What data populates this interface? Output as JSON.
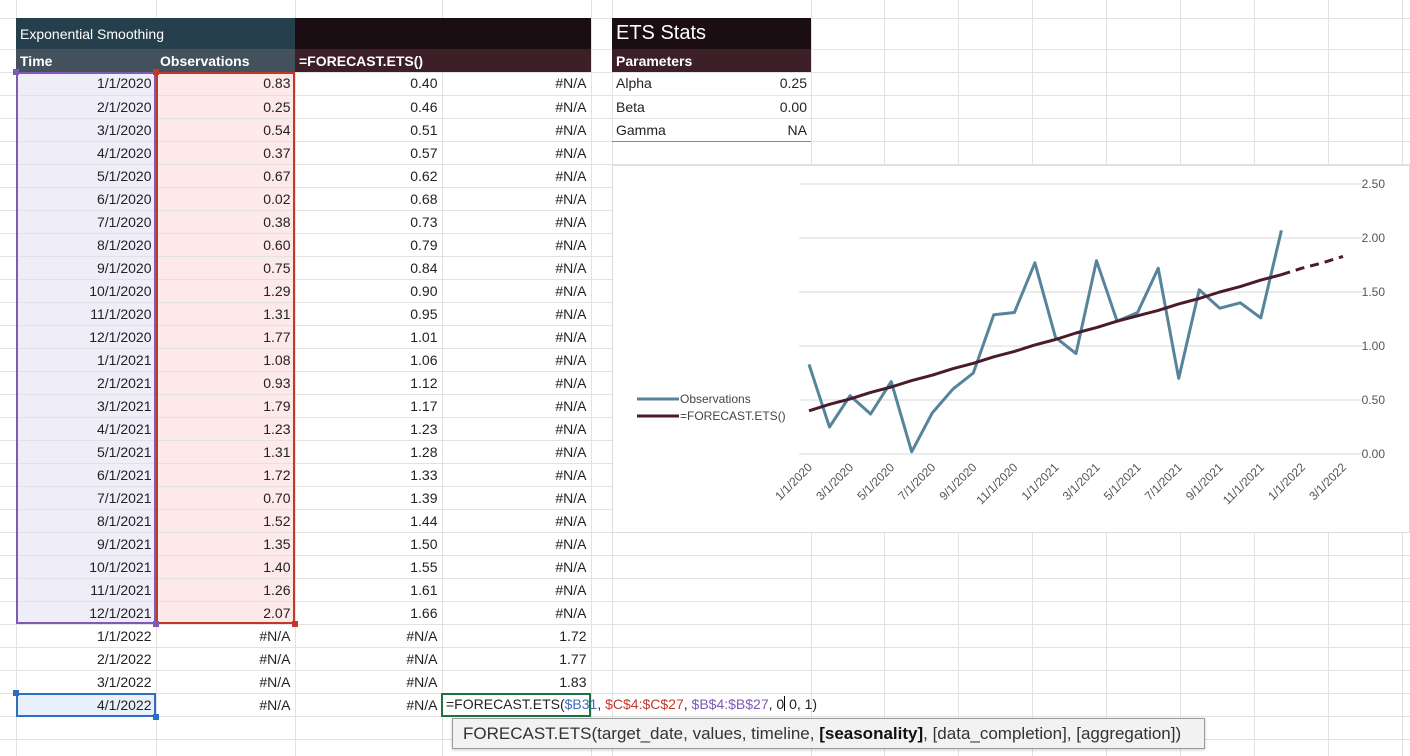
{
  "sheet": {
    "title": "Exponential Smoothing",
    "headers": {
      "time": "Time",
      "observations": "Observations",
      "forecast": "=FORECAST.ETS()"
    },
    "rows": [
      [
        "1/1/2020",
        "0.83",
        "0.40",
        "#N/A"
      ],
      [
        "2/1/2020",
        "0.25",
        "0.46",
        "#N/A"
      ],
      [
        "3/1/2020",
        "0.54",
        "0.51",
        "#N/A"
      ],
      [
        "4/1/2020",
        "0.37",
        "0.57",
        "#N/A"
      ],
      [
        "5/1/2020",
        "0.67",
        "0.62",
        "#N/A"
      ],
      [
        "6/1/2020",
        "0.02",
        "0.68",
        "#N/A"
      ],
      [
        "7/1/2020",
        "0.38",
        "0.73",
        "#N/A"
      ],
      [
        "8/1/2020",
        "0.60",
        "0.79",
        "#N/A"
      ],
      [
        "9/1/2020",
        "0.75",
        "0.84",
        "#N/A"
      ],
      [
        "10/1/2020",
        "1.29",
        "0.90",
        "#N/A"
      ],
      [
        "11/1/2020",
        "1.31",
        "0.95",
        "#N/A"
      ],
      [
        "12/1/2020",
        "1.77",
        "1.01",
        "#N/A"
      ],
      [
        "1/1/2021",
        "1.08",
        "1.06",
        "#N/A"
      ],
      [
        "2/1/2021",
        "0.93",
        "1.12",
        "#N/A"
      ],
      [
        "3/1/2021",
        "1.79",
        "1.17",
        "#N/A"
      ],
      [
        "4/1/2021",
        "1.23",
        "1.23",
        "#N/A"
      ],
      [
        "5/1/2021",
        "1.31",
        "1.28",
        "#N/A"
      ],
      [
        "6/1/2021",
        "1.72",
        "1.33",
        "#N/A"
      ],
      [
        "7/1/2021",
        "0.70",
        "1.39",
        "#N/A"
      ],
      [
        "8/1/2021",
        "1.52",
        "1.44",
        "#N/A"
      ],
      [
        "9/1/2021",
        "1.35",
        "1.50",
        "#N/A"
      ],
      [
        "10/1/2021",
        "1.40",
        "1.55",
        "#N/A"
      ],
      [
        "11/1/2021",
        "1.26",
        "1.61",
        "#N/A"
      ],
      [
        "12/1/2021",
        "2.07",
        "1.66",
        "#N/A"
      ],
      [
        "1/1/2022",
        "#N/A",
        "#N/A",
        "1.72"
      ],
      [
        "2/1/2022",
        "#N/A",
        "#N/A",
        "1.77"
      ],
      [
        "3/1/2022",
        "#N/A",
        "#N/A",
        "1.83"
      ]
    ],
    "active_row": {
      "time": "4/1/2022",
      "observations": "#N/A",
      "forecast": "#N/A"
    }
  },
  "stats": {
    "title": "ETS Stats",
    "header": "Parameters",
    "params": [
      {
        "name": "Alpha",
        "value": "0.25"
      },
      {
        "name": "Beta",
        "value": "0.00"
      },
      {
        "name": "Gamma",
        "value": "NA"
      }
    ]
  },
  "formula": {
    "prefix": "=FORECAST.ETS(",
    "arg1": "$B31",
    "sep1": ", ",
    "arg2": "$C$4:$C$27",
    "sep2": ", ",
    "arg3": "$B$4:$B$27",
    "sep3": ", 0",
    "rest": " 0, 1)"
  },
  "tooltip": {
    "prefix": "FORECAST.ETS(target_date, values, timeline, ",
    "bold": "[seasonality]",
    "suffix": ", [data_completion], [aggregation])"
  },
  "chart_data": {
    "type": "line",
    "x": [
      "1/1/2020",
      "2/1/2020",
      "3/1/2020",
      "4/1/2020",
      "5/1/2020",
      "6/1/2020",
      "7/1/2020",
      "8/1/2020",
      "9/1/2020",
      "10/1/2020",
      "11/1/2020",
      "12/1/2020",
      "1/1/2021",
      "2/1/2021",
      "3/1/2021",
      "4/1/2021",
      "5/1/2021",
      "6/1/2021",
      "7/1/2021",
      "8/1/2021",
      "9/1/2021",
      "10/1/2021",
      "11/1/2021",
      "12/1/2021",
      "1/1/2022",
      "2/1/2022",
      "3/1/2022"
    ],
    "x_tick_labels": [
      "1/1/2020",
      "3/1/2020",
      "5/1/2020",
      "7/1/2020",
      "9/1/2020",
      "11/1/2020",
      "1/1/2021",
      "3/1/2021",
      "5/1/2021",
      "7/1/2021",
      "9/1/2021",
      "11/1/2021",
      "1/1/2022",
      "3/1/2022"
    ],
    "y_tick_labels": [
      "0.00",
      "0.50",
      "1.00",
      "1.50",
      "2.00",
      "2.50"
    ],
    "ylim": [
      0,
      2.5
    ],
    "grid": true,
    "legend_position": "left",
    "series": [
      {
        "name": "Observations",
        "color": "#56849a",
        "style": "solid",
        "values": [
          0.83,
          0.25,
          0.54,
          0.37,
          0.67,
          0.02,
          0.38,
          0.6,
          0.75,
          1.29,
          1.31,
          1.77,
          1.08,
          0.93,
          1.79,
          1.23,
          1.31,
          1.72,
          0.7,
          1.52,
          1.35,
          1.4,
          1.26,
          2.07,
          null,
          null,
          null
        ]
      },
      {
        "name": "=FORECAST.ETS()",
        "color": "#4a1c2b",
        "style": "solid",
        "values": [
          0.4,
          0.46,
          0.51,
          0.57,
          0.62,
          0.68,
          0.73,
          0.79,
          0.84,
          0.9,
          0.95,
          1.01,
          1.06,
          1.12,
          1.17,
          1.23,
          1.28,
          1.33,
          1.39,
          1.44,
          1.5,
          1.55,
          1.61,
          1.66,
          null,
          null,
          null
        ]
      },
      {
        "name": "",
        "color": "#4a1c2b",
        "style": "dashed",
        "values": [
          null,
          null,
          null,
          null,
          null,
          null,
          null,
          null,
          null,
          null,
          null,
          null,
          null,
          null,
          null,
          null,
          null,
          null,
          null,
          null,
          null,
          null,
          null,
          1.66,
          1.72,
          1.77,
          1.83
        ]
      }
    ]
  }
}
